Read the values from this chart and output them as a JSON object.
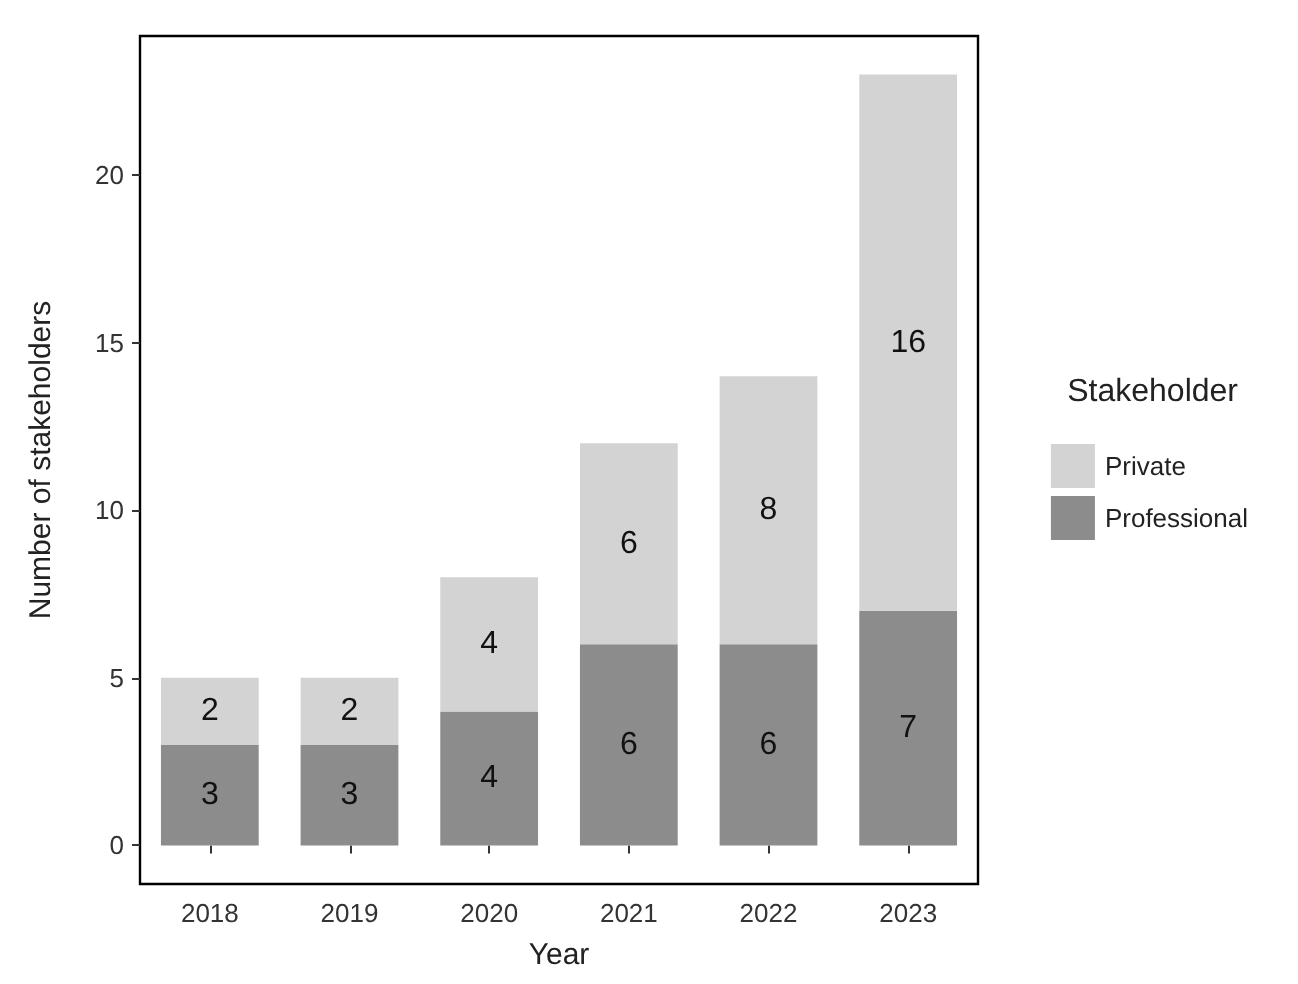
{
  "chart_data": {
    "type": "bar",
    "stacked": true,
    "xlabel": "Year",
    "ylabel": "Number of stakeholders",
    "legend_title": "Stakeholder",
    "legend": "right",
    "grid": false,
    "data_labels": true,
    "categories": [
      "2018",
      "2019",
      "2020",
      "2021",
      "2022",
      "2023"
    ],
    "ylim": [
      -1.15,
      24.15
    ],
    "yticks": [
      0,
      5,
      10,
      15,
      20
    ],
    "series": [
      {
        "name": "Professional",
        "color": "#8c8c8c",
        "values": [
          3,
          3,
          4,
          6,
          6,
          7
        ]
      },
      {
        "name": "Private",
        "color": "#d3d3d3",
        "values": [
          2,
          2,
          4,
          6,
          8,
          16
        ]
      }
    ]
  }
}
